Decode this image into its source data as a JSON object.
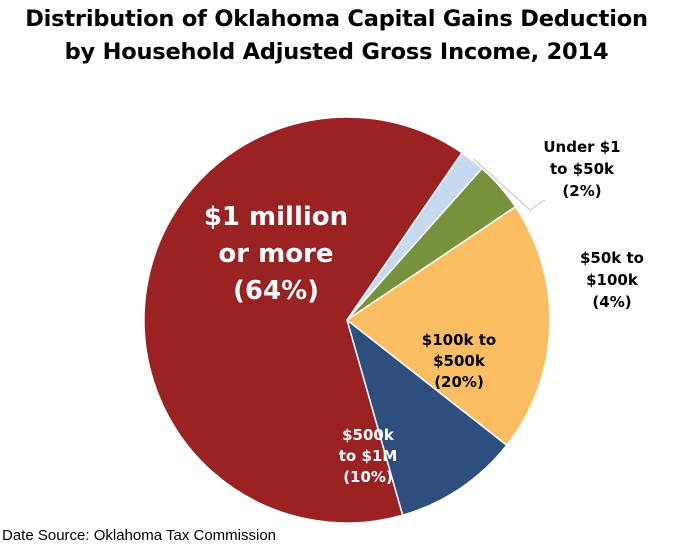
{
  "chart_data": {
    "type": "pie",
    "title": [
      "Distribution of Oklahoma Capital Gains Deduction",
      "by Household Adjusted Gross Income, 2014"
    ],
    "slices": [
      {
        "label": [
          "Under $1",
          "to $50k",
          "(2%)"
        ],
        "value": 2,
        "color": "#c6d9f1",
        "label_color": "#000000"
      },
      {
        "label": [
          "$50k to",
          "$100k",
          "(4%)"
        ],
        "value": 4,
        "color": "#76923c",
        "label_color": "#000000"
      },
      {
        "label": [
          "$100k to",
          "$500k",
          "(20%)"
        ],
        "value": 20,
        "color": "#fbbd62",
        "label_color": "#000000"
      },
      {
        "label": [
          "$500k",
          "to $1M",
          "(10%)"
        ],
        "value": 10,
        "color": "#2e4e7e",
        "label_color": "#ffffff"
      },
      {
        "label": [
          "$1 million",
          "or more",
          "(64%)"
        ],
        "value": 64,
        "color": "#9a2223",
        "label_color": "#ffffff"
      }
    ],
    "legend": "none"
  },
  "source_text": "Date Source: Oklahoma Tax Commission"
}
